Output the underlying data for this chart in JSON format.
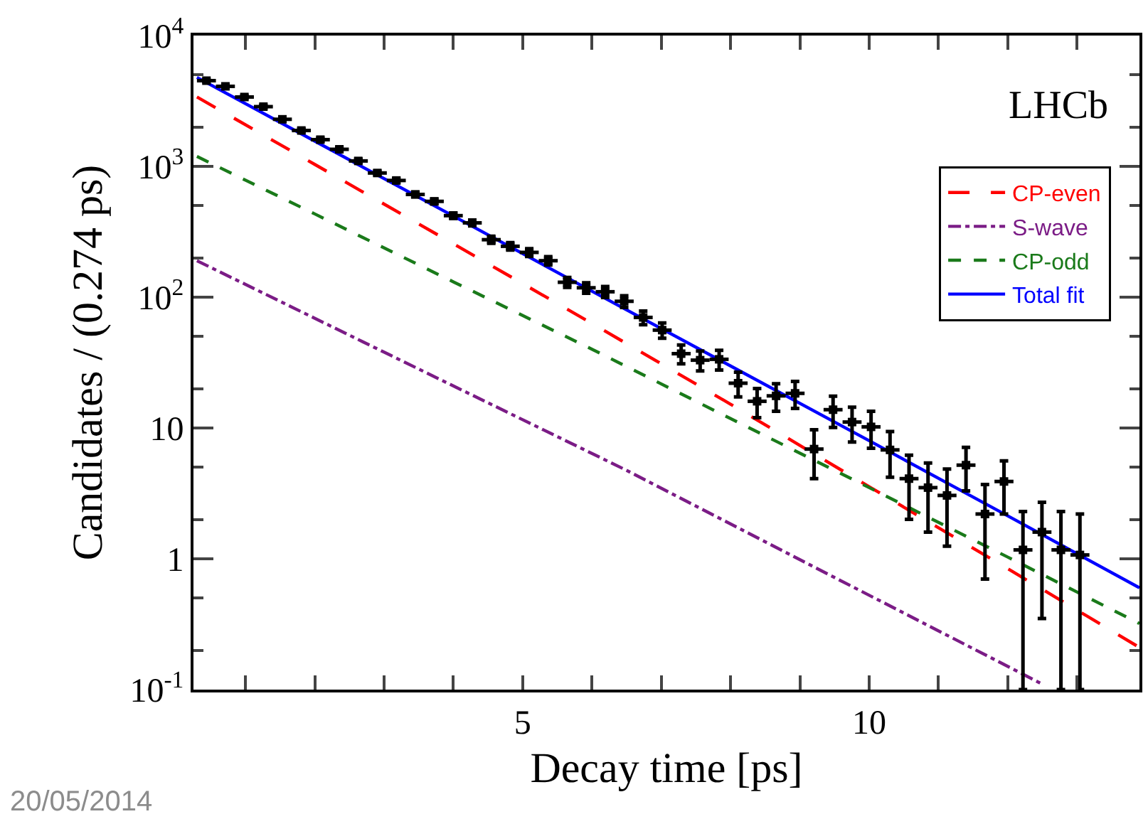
{
  "chart_data": {
    "type": "line",
    "xlabel": "Decay time [ps]",
    "ylabel": "Candidates / (0.274 ps)",
    "log": "y",
    "xlim": [
      0.25,
      13.9
    ],
    "ylim": [
      0.1,
      10000
    ],
    "xticks": [
      {
        "value": 1,
        "label": null
      },
      {
        "value": 2,
        "label": null
      },
      {
        "value": 3,
        "label": null
      },
      {
        "value": 4,
        "label": null
      },
      5,
      {
        "value": 6,
        "label": null
      },
      {
        "value": 7,
        "label": null
      },
      {
        "value": 8,
        "label": null
      },
      {
        "value": 9,
        "label": null
      },
      10,
      {
        "value": 11,
        "label": null
      },
      {
        "value": 12,
        "label": null
      },
      {
        "value": 13,
        "label": null
      }
    ],
    "yticks": [
      {
        "value": 0.1,
        "label": "10$^{-1}$"
      },
      1,
      10,
      {
        "value": 100,
        "label": "10$^{2}$"
      },
      {
        "value": 1000,
        "label": "10$^{3}$"
      },
      {
        "value": 10000,
        "label": "10$^{4}$"
      }
    ],
    "legend": "top right",
    "annotations": [
      "LHCb",
      "20/05/2014"
    ],
    "series": [
      {
        "type": "scatter",
        "color": "#000000",
        "marker": "square",
        "x": [
          0.437,
          0.711,
          0.985,
          1.259,
          1.533,
          1.807,
          2.081,
          2.355,
          2.629,
          2.903,
          3.177,
          3.451,
          3.725,
          3.999,
          4.273,
          4.547,
          4.821,
          5.095,
          5.369,
          5.643,
          5.917,
          6.191,
          6.465,
          6.739,
          7.013,
          7.287,
          7.561,
          7.835,
          8.109,
          8.383,
          8.657,
          8.931,
          9.205,
          9.479,
          9.753,
          10.027,
          10.301,
          10.575,
          10.849,
          11.123,
          11.397,
          11.671,
          11.945,
          12.219,
          12.493,
          12.767,
          13.041
        ],
        "values": [
          4520,
          4090,
          3390,
          2860,
          2290,
          1880,
          1600,
          1350,
          1100,
          890,
          780,
          610,
          540,
          420,
          370,
          275,
          245,
          220,
          190,
          130,
          118,
          110,
          93,
          70,
          56,
          37,
          33,
          33.5,
          22,
          16,
          17.6,
          18.4,
          6.9,
          13.8,
          11.1,
          10.2,
          6.8,
          4.1,
          3.5,
          3.05,
          5.2,
          2.2,
          3.9,
          1.17,
          1.6,
          1.17,
          1.07
        ],
        "errors": [
          67,
          64,
          58,
          53,
          48,
          43,
          40,
          37,
          33,
          30,
          28,
          25,
          23,
          20,
          19,
          17,
          16,
          15,
          14,
          11.4,
          10.9,
          10.5,
          9.6,
          8.4,
          7.5,
          6.1,
          5.7,
          5.8,
          4.7,
          4.0,
          4.2,
          4.3,
          2.8,
          3.7,
          3.3,
          3.2,
          2.6,
          2.1,
          1.9,
          1.8,
          1.9,
          1.5,
          1.7,
          [
            0.1,
            2.3
          ],
          [
            0.35,
            2.7
          ],
          [
            0.1,
            2.3
          ],
          [
            0.1,
            2.2
          ]
        ],
        "xerrors": [
          0.137,
          0.137,
          0.137,
          0.137,
          0.137,
          0.137,
          0.137,
          0.137,
          0.137,
          0.137,
          0.137,
          0.137,
          0.137,
          0.137,
          0.137,
          0.137,
          0.137,
          0.137,
          0.137,
          0.137,
          0.137,
          0.137,
          0.137,
          0.137,
          0.137,
          0.137,
          0.137,
          0.137,
          0.137,
          0.137,
          0.137,
          0.137,
          0.137,
          0.137,
          0.137,
          0.137,
          0.137,
          0.137,
          0.137,
          0.137,
          0.137,
          0.137,
          0.137,
          0.137,
          0.137,
          0.137,
          0.137
        ]
      },
      {
        "name": "CP-even",
        "color": "#ff0000",
        "line_style": "longdashed",
        "x": [
          0.3,
          2,
          4,
          6,
          8,
          10,
          12,
          13.9
        ],
        "values": [
          3390,
          1035,
          256,
          63,
          15.2,
          3.56,
          0.84,
          0.21
        ]
      },
      {
        "name": "S-wave",
        "color": "#7b1c86",
        "line_style": "dashdot",
        "x": [
          0.3,
          3,
          6.48,
          9.5,
          12.5
        ],
        "values": [
          190,
          38,
          4.8,
          0.72,
          0.11
        ]
      },
      {
        "name": "CP-odd",
        "color": "#1a7a1a",
        "line_style": "dashed",
        "x": [
          0.3,
          2,
          4,
          6,
          8,
          10,
          12,
          13.9
        ],
        "values": [
          1190,
          433,
          131,
          40,
          11.8,
          3.5,
          1.03,
          0.32
        ]
      },
      {
        "name": "Total fit",
        "color": "#0000ff",
        "line_style": "solid",
        "x": [
          0.3,
          2,
          4,
          6,
          8,
          10,
          12,
          13.9
        ],
        "values": [
          4790,
          1560,
          417,
          111,
          29.8,
          8.0,
          2.13,
          0.6
        ]
      }
    ]
  }
}
